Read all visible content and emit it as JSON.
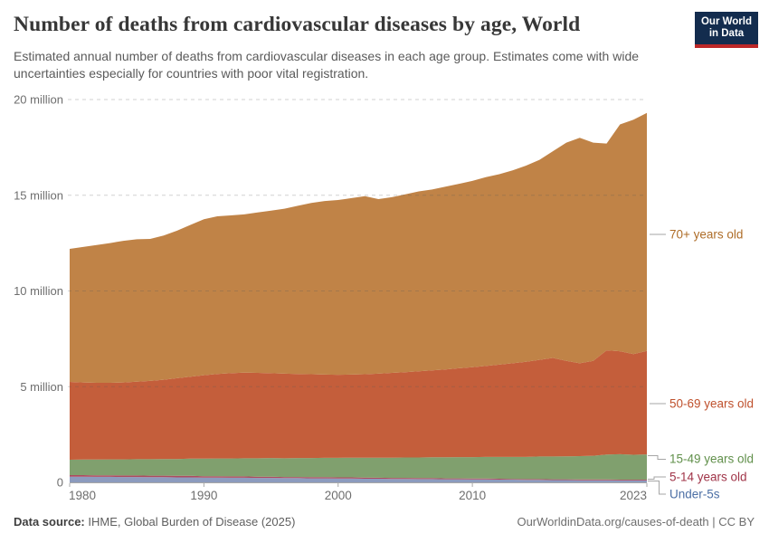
{
  "header": {
    "title": "Number of deaths from cardiovascular diseases by age, World",
    "subtitle": "Estimated annual number of deaths from cardiovascular diseases in each age group. Estimates come with wide uncertainties especially for countries with poor vital registration.",
    "logo": {
      "line1": "Our World",
      "line2": "in Data"
    }
  },
  "chart_data": {
    "type": "area",
    "stacked": true,
    "grid": "dashed-horizontal",
    "legend_position": "right",
    "x": [
      1980,
      1981,
      1982,
      1983,
      1984,
      1985,
      1986,
      1987,
      1988,
      1989,
      1990,
      1991,
      1992,
      1993,
      1994,
      1995,
      1996,
      1997,
      1998,
      1999,
      2000,
      2001,
      2002,
      2003,
      2004,
      2005,
      2006,
      2007,
      2008,
      2009,
      2010,
      2011,
      2012,
      2013,
      2014,
      2015,
      2016,
      2017,
      2018,
      2019,
      2020,
      2021,
      2022,
      2023
    ],
    "unit": "million deaths",
    "ylim": [
      0,
      20
    ],
    "yticks": [
      {
        "v": 0,
        "label": "0"
      },
      {
        "v": 5,
        "label": "5 million"
      },
      {
        "v": 10,
        "label": "10 million"
      },
      {
        "v": 15,
        "label": "15 million"
      },
      {
        "v": 20,
        "label": "20 million"
      }
    ],
    "xticks": [
      {
        "v": 1980,
        "label": "1980"
      },
      {
        "v": 1990,
        "label": "1990"
      },
      {
        "v": 2000,
        "label": "2000"
      },
      {
        "v": 2010,
        "label": "2010"
      },
      {
        "v": 2023,
        "label": "2023"
      }
    ],
    "series": [
      {
        "name": "Under-5s",
        "label_color": "#4C6FA5",
        "fill": "#8C9BBE",
        "values": [
          0.3,
          0.3,
          0.29,
          0.29,
          0.28,
          0.28,
          0.27,
          0.27,
          0.26,
          0.26,
          0.25,
          0.25,
          0.24,
          0.24,
          0.23,
          0.23,
          0.22,
          0.22,
          0.21,
          0.21,
          0.2,
          0.2,
          0.19,
          0.19,
          0.18,
          0.18,
          0.17,
          0.17,
          0.16,
          0.16,
          0.15,
          0.15,
          0.14,
          0.14,
          0.13,
          0.13,
          0.12,
          0.12,
          0.11,
          0.11,
          0.11,
          0.1,
          0.1,
          0.1
        ]
      },
      {
        "name": "5-14 years old",
        "label_color": "#A03448",
        "fill": "#AD4B60",
        "values": [
          0.08,
          0.08,
          0.08,
          0.08,
          0.08,
          0.08,
          0.08,
          0.08,
          0.08,
          0.08,
          0.07,
          0.07,
          0.07,
          0.07,
          0.07,
          0.07,
          0.06,
          0.06,
          0.06,
          0.06,
          0.06,
          0.06,
          0.06,
          0.05,
          0.05,
          0.05,
          0.05,
          0.05,
          0.05,
          0.05,
          0.05,
          0.05,
          0.05,
          0.04,
          0.04,
          0.04,
          0.04,
          0.04,
          0.04,
          0.04,
          0.04,
          0.04,
          0.04,
          0.04
        ]
      },
      {
        "name": "15-49 years old",
        "label_color": "#61904B",
        "fill": "#80A06E",
        "values": [
          0.8,
          0.81,
          0.82,
          0.83,
          0.84,
          0.85,
          0.86,
          0.87,
          0.88,
          0.9,
          0.92,
          0.93,
          0.94,
          0.95,
          0.96,
          0.97,
          0.98,
          0.99,
          1.0,
          1.01,
          1.02,
          1.03,
          1.04,
          1.05,
          1.06,
          1.07,
          1.08,
          1.09,
          1.1,
          1.11,
          1.12,
          1.13,
          1.14,
          1.15,
          1.16,
          1.18,
          1.19,
          1.2,
          1.22,
          1.24,
          1.3,
          1.33,
          1.3,
          1.32
        ]
      },
      {
        "name": "50-69 years old",
        "label_color": "#BF512D",
        "fill": "#C45E3B",
        "values": [
          4.07,
          4.03,
          4.01,
          4.0,
          4.02,
          4.05,
          4.09,
          4.14,
          4.22,
          4.28,
          4.36,
          4.41,
          4.45,
          4.47,
          4.46,
          4.43,
          4.42,
          4.39,
          4.38,
          4.35,
          4.34,
          4.34,
          4.36,
          4.39,
          4.43,
          4.46,
          4.5,
          4.54,
          4.59,
          4.64,
          4.7,
          4.75,
          4.82,
          4.89,
          4.97,
          5.05,
          5.15,
          4.99,
          4.85,
          4.96,
          5.45,
          5.38,
          5.26,
          5.41
        ]
      },
      {
        "name": "70+ years old",
        "label_color": "#AE6D28",
        "fill": "#C08347",
        "values": [
          6.95,
          7.08,
          7.2,
          7.3,
          7.4,
          7.44,
          7.42,
          7.54,
          7.71,
          7.93,
          8.15,
          8.24,
          8.25,
          8.27,
          8.38,
          8.5,
          8.62,
          8.79,
          8.95,
          9.07,
          9.13,
          9.22,
          9.3,
          9.12,
          9.18,
          9.29,
          9.4,
          9.45,
          9.55,
          9.64,
          9.73,
          9.87,
          9.95,
          10.08,
          10.25,
          10.45,
          10.8,
          11.4,
          11.78,
          11.4,
          10.8,
          11.85,
          12.25,
          12.43
        ]
      }
    ]
  },
  "footer": {
    "source_label": "Data source:",
    "source_value": " IHME, Global Burden of Disease (2025)",
    "license": "OurWorldinData.org/causes-of-death | CC BY"
  }
}
